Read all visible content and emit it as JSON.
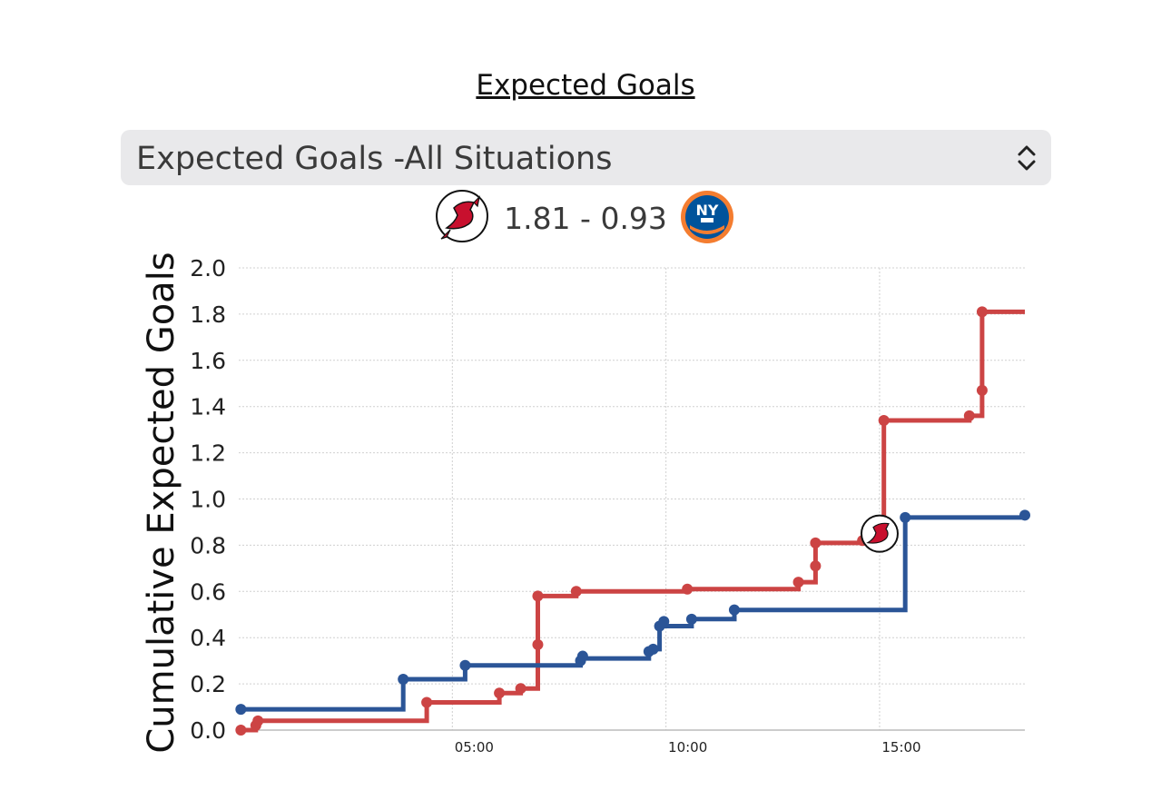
{
  "header": {
    "title": "Expected Goals"
  },
  "selector": {
    "value": "Expected Goals -All Situations",
    "icon": "chevron-updown-icon"
  },
  "score": {
    "home_icon": "devils-logo-icon",
    "text": "1.81 - 0.93",
    "away_icon": "islanders-logo-icon"
  },
  "colors": {
    "devils": "#cc4444",
    "islanders": "#2b5597",
    "grid": "#d0d0d0"
  },
  "chart_data": {
    "type": "line",
    "title": "",
    "xlabel": "",
    "ylabel": "Cumulative Expected Goals",
    "xlim": [
      0,
      18.4
    ],
    "ylim": [
      0,
      2.0
    ],
    "yticks": [
      "0.0",
      "0.2",
      "0.4",
      "0.6",
      "0.8",
      "1.0",
      "1.2",
      "1.4",
      "1.6",
      "1.8",
      "2.0"
    ],
    "xticks": [
      {
        "value": 5,
        "label": "05:00"
      },
      {
        "value": 10,
        "label": "10:00"
      },
      {
        "value": 15,
        "label": "15:00"
      }
    ],
    "grid": true,
    "legend": "none",
    "series": [
      {
        "key": "devils",
        "color": "#cc4444",
        "line": [
          [
            0,
            0
          ],
          [
            0.4,
            0
          ],
          [
            0.4,
            0.04
          ],
          [
            4.4,
            0.04
          ],
          [
            4.4,
            0.12
          ],
          [
            6.1,
            0.12
          ],
          [
            6.1,
            0.16
          ],
          [
            6.6,
            0.16
          ],
          [
            6.6,
            0.18
          ],
          [
            7.0,
            0.18
          ],
          [
            7.0,
            0.58
          ],
          [
            7.9,
            0.58
          ],
          [
            7.9,
            0.6
          ],
          [
            10.5,
            0.6
          ],
          [
            10.5,
            0.61
          ],
          [
            13.1,
            0.61
          ],
          [
            13.1,
            0.64
          ],
          [
            13.5,
            0.64
          ],
          [
            13.5,
            0.71
          ],
          [
            13.5,
            0.81
          ],
          [
            14.6,
            0.81
          ],
          [
            14.6,
            0.82
          ],
          [
            15.1,
            0.82
          ],
          [
            15.1,
            1.34
          ],
          [
            17.1,
            1.34
          ],
          [
            17.1,
            1.36
          ],
          [
            17.4,
            1.36
          ],
          [
            17.4,
            1.47
          ],
          [
            17.4,
            1.81
          ],
          [
            18.4,
            1.81
          ]
        ],
        "points": [
          [
            0.05,
            0
          ],
          [
            0.4,
            0.02
          ],
          [
            0.45,
            0.04
          ],
          [
            4.4,
            0.12
          ],
          [
            6.1,
            0.16
          ],
          [
            6.6,
            0.18
          ],
          [
            7.0,
            0.37
          ],
          [
            7.0,
            0.58
          ],
          [
            7.9,
            0.6
          ],
          [
            10.5,
            0.61
          ],
          [
            13.1,
            0.64
          ],
          [
            13.5,
            0.71
          ],
          [
            13.5,
            0.81
          ],
          [
            14.6,
            0.82
          ],
          [
            15.1,
            1.34
          ],
          [
            17.1,
            1.36
          ],
          [
            17.4,
            1.47
          ],
          [
            17.4,
            1.81
          ]
        ]
      },
      {
        "key": "islanders",
        "color": "#2b5597",
        "line": [
          [
            0,
            0.09
          ],
          [
            3.85,
            0.09
          ],
          [
            3.85,
            0.22
          ],
          [
            5.3,
            0.22
          ],
          [
            5.3,
            0.28
          ],
          [
            8.0,
            0.28
          ],
          [
            8.0,
            0.31
          ],
          [
            9.6,
            0.31
          ],
          [
            9.6,
            0.35
          ],
          [
            9.85,
            0.35
          ],
          [
            9.85,
            0.45
          ],
          [
            10.6,
            0.45
          ],
          [
            10.6,
            0.48
          ],
          [
            11.6,
            0.48
          ],
          [
            11.6,
            0.52
          ],
          [
            15.6,
            0.52
          ],
          [
            15.6,
            0.92
          ],
          [
            18.4,
            0.92
          ]
        ],
        "points": [
          [
            0.05,
            0.09
          ],
          [
            3.85,
            0.22
          ],
          [
            5.3,
            0.28
          ],
          [
            8.0,
            0.3
          ],
          [
            8.05,
            0.32
          ],
          [
            9.6,
            0.34
          ],
          [
            9.7,
            0.35
          ],
          [
            9.85,
            0.45
          ],
          [
            9.95,
            0.47
          ],
          [
            10.6,
            0.48
          ],
          [
            11.6,
            0.52
          ],
          [
            15.6,
            0.92
          ],
          [
            18.4,
            0.93
          ]
        ]
      }
    ],
    "goal_marker": {
      "icon": "devils-logo-icon",
      "x": 15.0,
      "y": 0.85
    }
  }
}
